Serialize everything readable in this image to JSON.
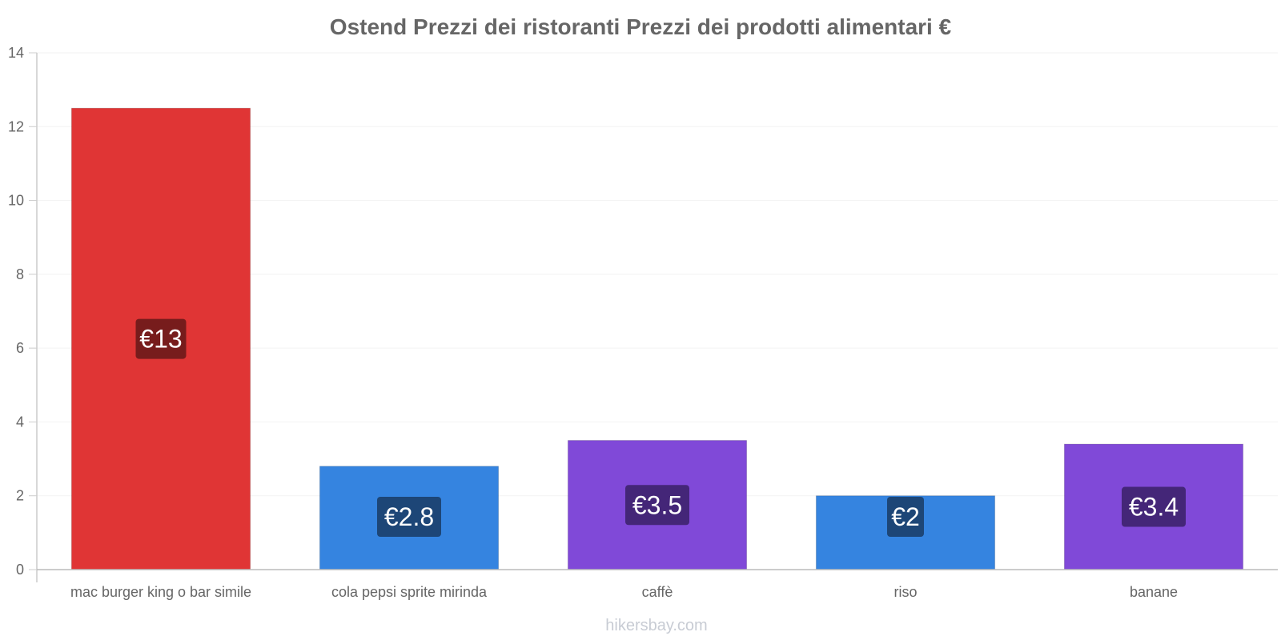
{
  "chart_data": {
    "type": "bar",
    "title": "Ostend Prezzi dei ristoranti Prezzi dei prodotti alimentari €",
    "categories": [
      "mac burger king o bar simile",
      "cola pepsi sprite mirinda",
      "caffè",
      "riso",
      "banane"
    ],
    "values": [
      12.5,
      2.8,
      3.5,
      2.0,
      3.4
    ],
    "data_labels": [
      "€13",
      "€2.8",
      "€3.5",
      "€2",
      "€3.4"
    ],
    "bar_colors": [
      "#e03535",
      "#3584e0",
      "#8049d8",
      "#3584e0",
      "#8049d8"
    ],
    "label_colors": [
      "#6e1a1a",
      "#1b416e",
      "#3f2470",
      "#1b416e",
      "#3f2470"
    ],
    "yticks": [
      0,
      2,
      4,
      6,
      8,
      10,
      12,
      14
    ],
    "ylim": [
      0,
      14
    ],
    "xlabel": "",
    "ylabel": "",
    "grid": true
  },
  "watermark": "hikersbay.com"
}
